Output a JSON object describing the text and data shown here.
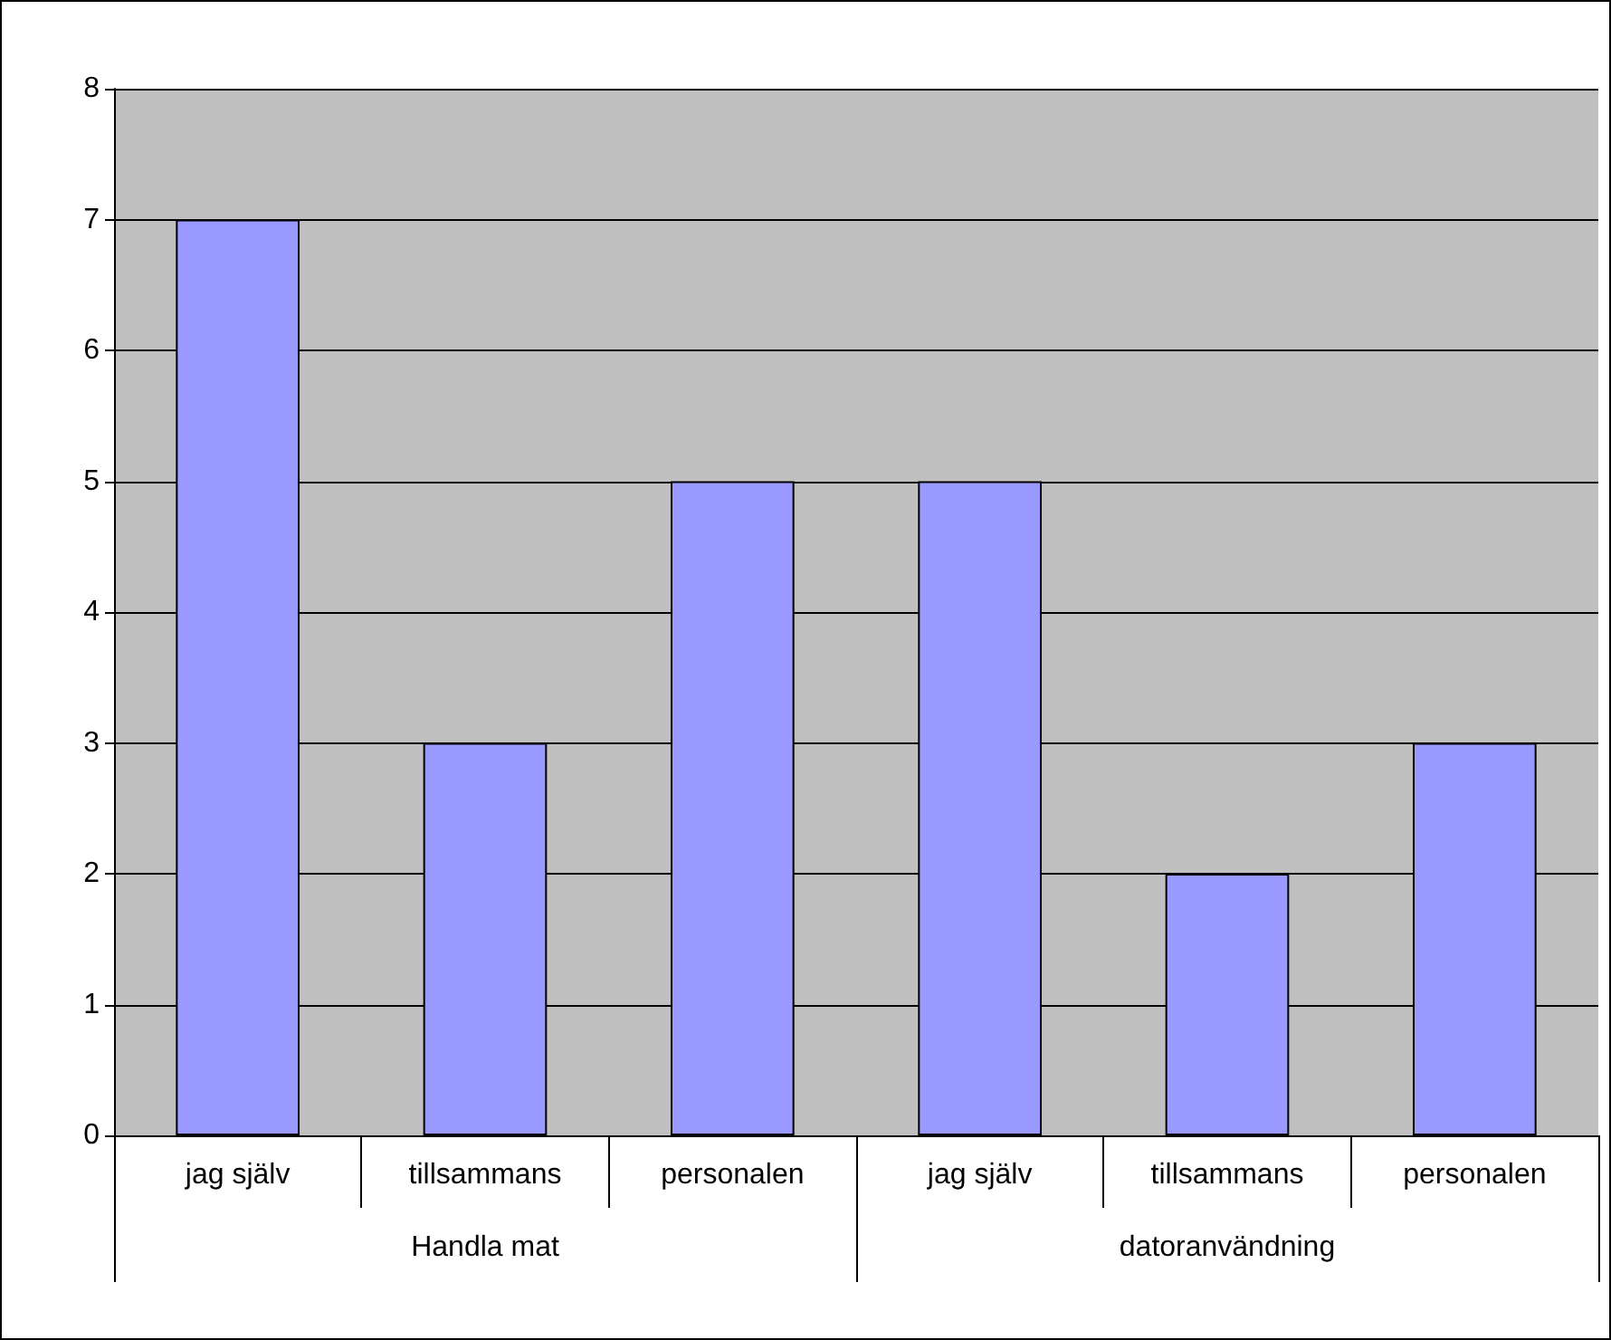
{
  "chart_data": {
    "type": "bar",
    "categories": [
      "jag själv",
      "tillsammans",
      "personalen",
      "jag själv",
      "tillsammans",
      "personalen"
    ],
    "values": [
      7,
      3,
      5,
      5,
      2,
      3
    ],
    "color": "#9999ff",
    "ylim": [
      0,
      8
    ],
    "yticks": [
      0,
      1,
      2,
      3,
      4,
      5,
      6,
      7,
      8
    ],
    "grid": "y",
    "annotations": [
      "Handla mat",
      "datoranvändning"
    ]
  }
}
